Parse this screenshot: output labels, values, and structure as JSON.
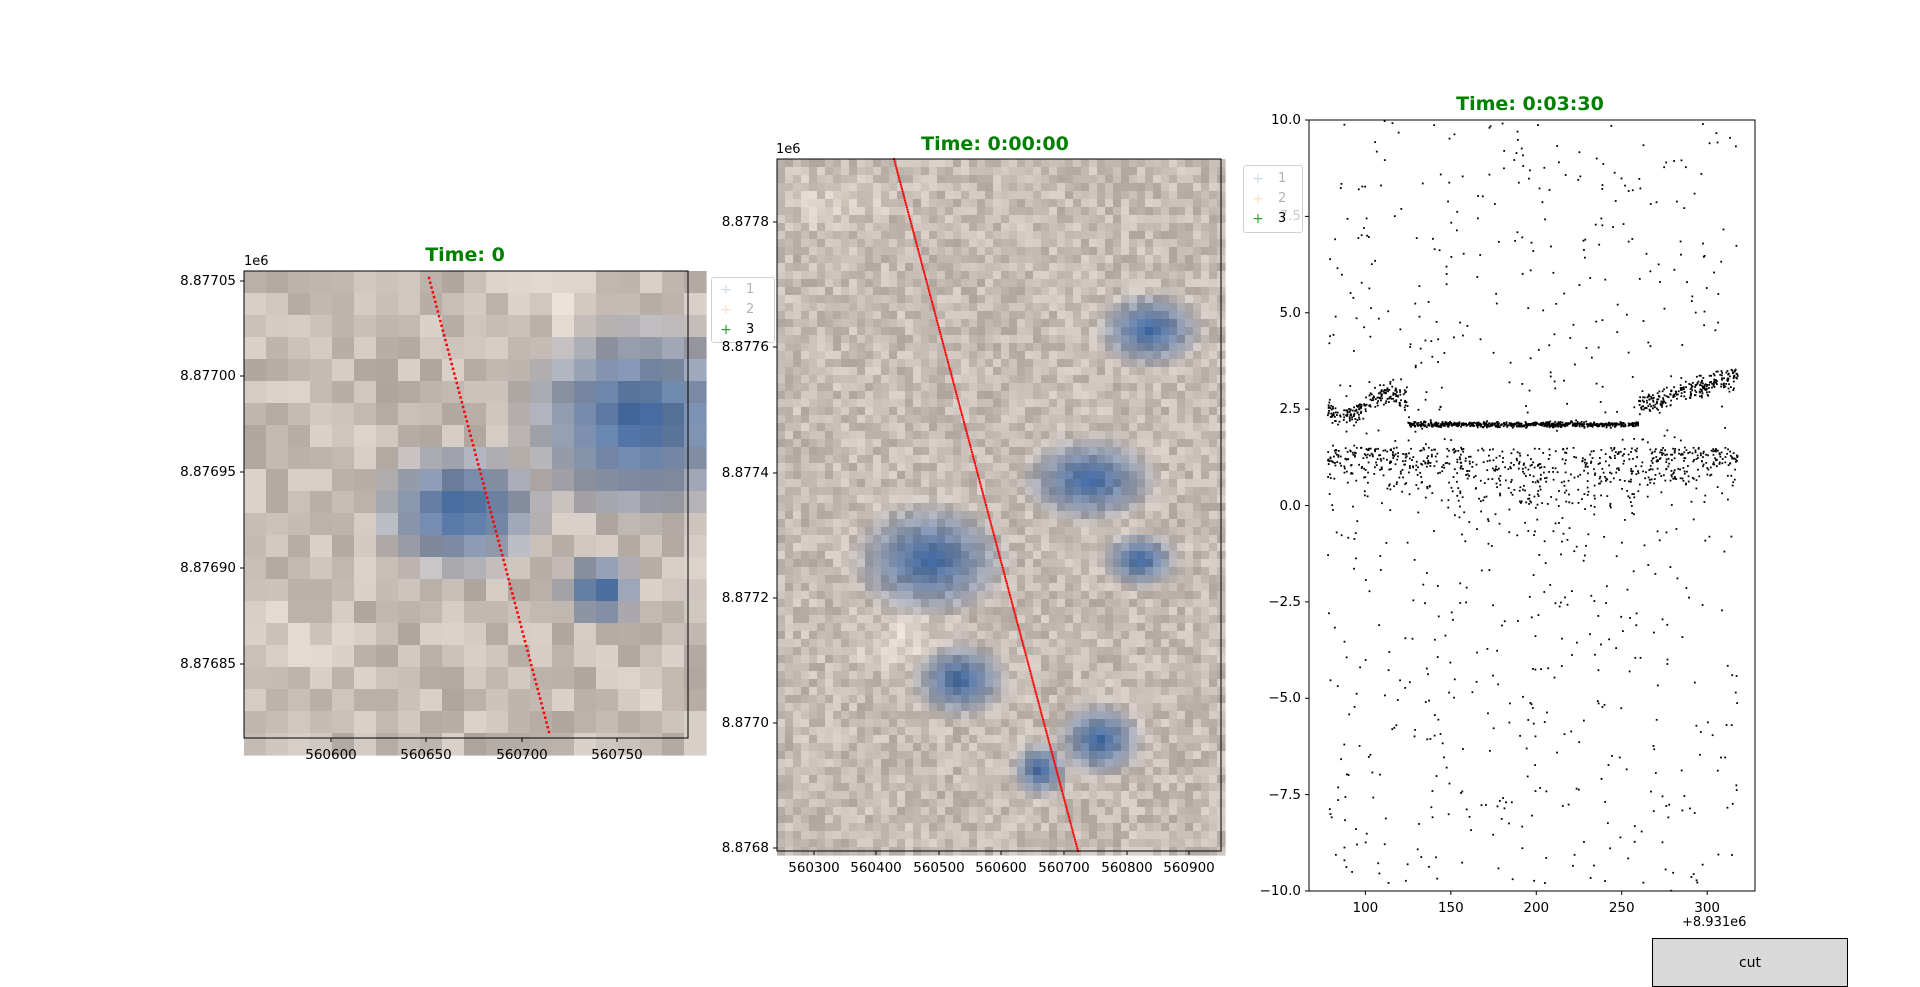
{
  "panel1": {
    "title": "Time: 0",
    "offset_label": "1e6",
    "legend": [
      "1",
      "2",
      "3"
    ],
    "y_ticks": [
      "8.87705",
      "8.87700",
      "8.87695",
      "8.87690",
      "8.87685"
    ],
    "x_ticks": [
      "560600",
      "560650",
      "560700",
      "560750"
    ]
  },
  "panel2": {
    "title": "Time: 0:00:00",
    "offset_label": "1e6",
    "y_ticks": [
      "8.8778",
      "8.8776",
      "8.8774",
      "8.8772",
      "8.8770",
      "8.8768"
    ],
    "x_ticks": [
      "560300",
      "560400",
      "560500",
      "560600",
      "560700",
      "560800",
      "560900"
    ]
  },
  "panel3": {
    "title": "Time: 0:03:30",
    "x_offset_label": "+8.931e6",
    "legend": [
      "1",
      "2",
      "3"
    ],
    "y_ticks": [
      "10.0",
      "7.5",
      "5.0",
      "2.5",
      "0.0",
      "−2.5",
      "−5.0",
      "−7.5",
      "−10.0"
    ],
    "x_ticks": [
      "100",
      "150",
      "200",
      "250",
      "300"
    ]
  },
  "controls": {
    "cut_label": "cut"
  },
  "colors": {
    "title": "#008000",
    "track": "#ff0000",
    "points": "#000000",
    "legend_1": "#1f77b4",
    "legend_2": "#ff7f0e",
    "legend_3": "#2ca02c"
  },
  "chart_data": [
    {
      "type": "heatmap",
      "title": "Time: 0",
      "xlim": [
        560553,
        560785
      ],
      "ylim": [
        8876808,
        8877053
      ],
      "y_offset": "1e6",
      "legend": [
        "1",
        "2",
        "3"
      ],
      "overlay_track": {
        "start": [
          560650,
          8877048
        ],
        "end": [
          560715,
          8876810
        ]
      }
    },
    {
      "type": "heatmap",
      "title": "Time: 0:00:00",
      "xlim": [
        560245,
        560945
      ],
      "ylim": [
        8876796,
        8877900
      ],
      "y_offset": "1e6",
      "overlay_track": {
        "start": [
          560433,
          8877898
        ],
        "end": [
          560723,
          8876798
        ]
      }
    },
    {
      "type": "scatter",
      "title": "Time: 0:03:30",
      "xlim": [
        67,
        328
      ],
      "ylim": [
        -10,
        10
      ],
      "x_offset": "+8.931e6",
      "legend": [
        "1",
        "2",
        "3"
      ],
      "points_approx": 2500,
      "dense_band_y": [
        1.8,
        2.6
      ],
      "x_range": [
        78,
        318
      ]
    }
  ]
}
